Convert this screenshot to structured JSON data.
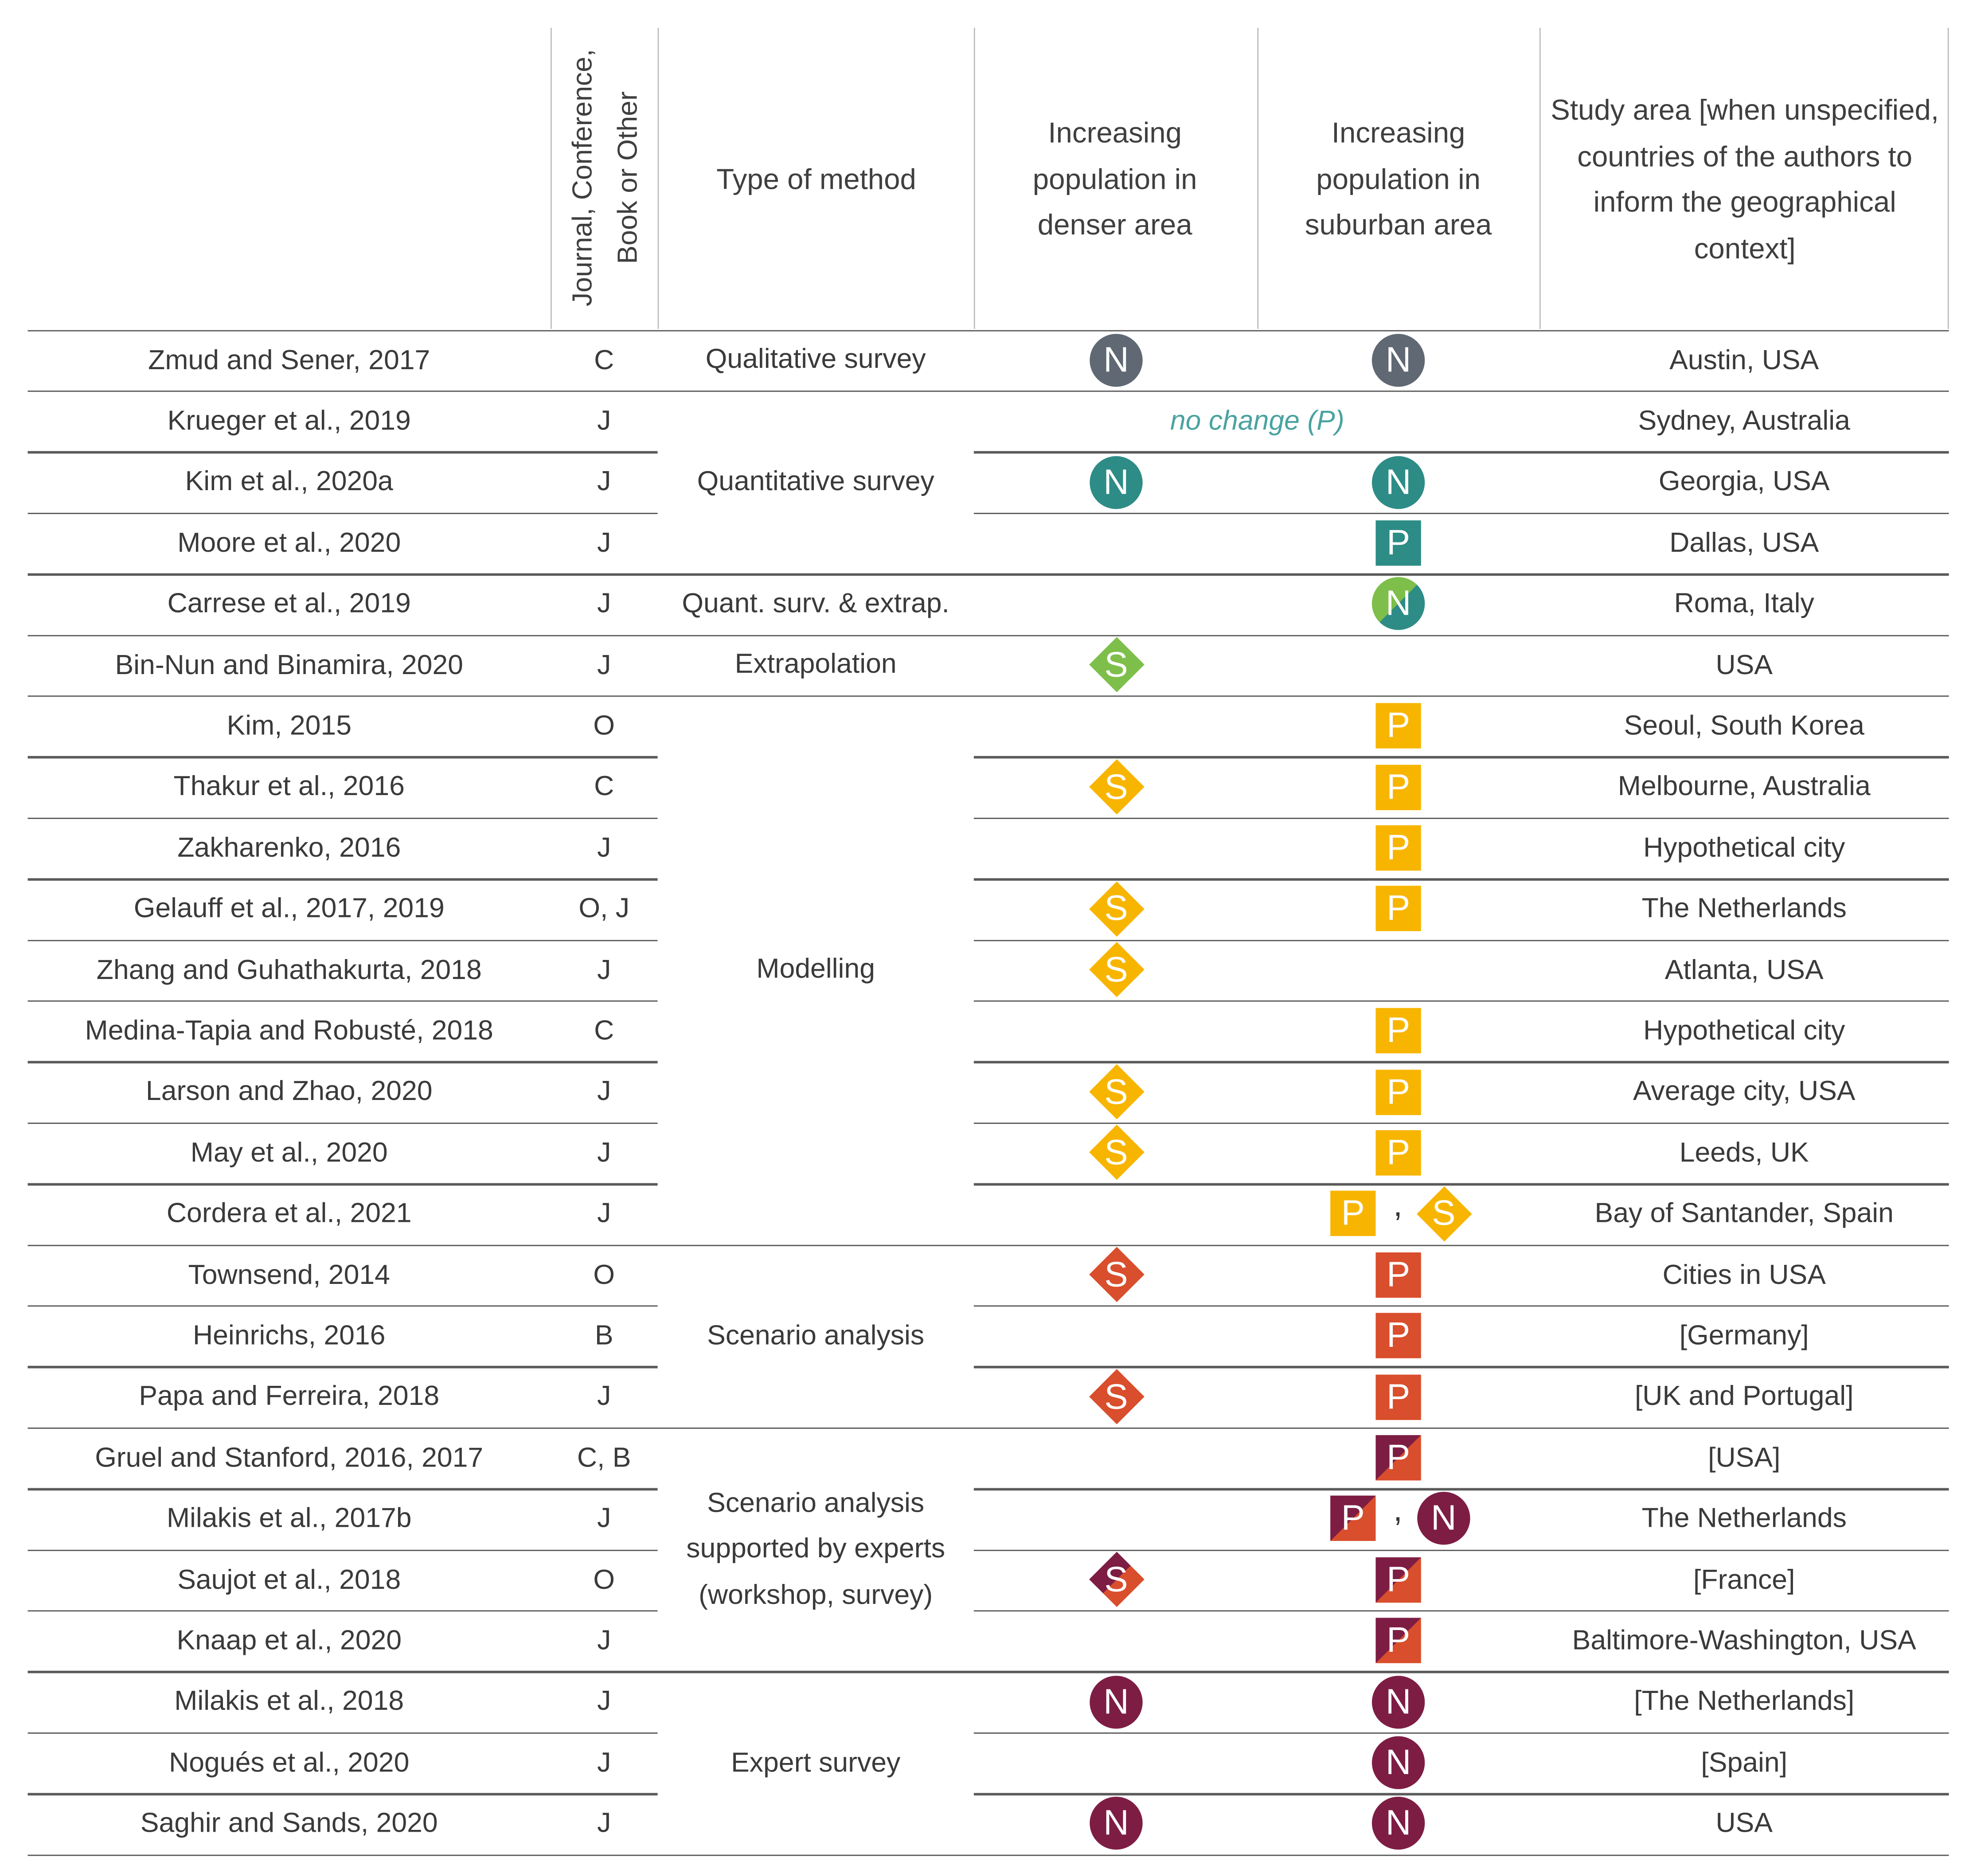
{
  "headers": {
    "type_label": "Journal, Conference, Book or Other",
    "method": "Type of method",
    "denser": "Increasing population in denser area",
    "suburban": "Increasing population in suburban area",
    "study_area": "Study area [when unspecified, countries of the authors to inform the geographical context]"
  },
  "colors": {
    "qualitative": "#5f6873",
    "quantitative": "#2d8c86",
    "green": "#7dbf4a",
    "modelling": "#f7b500",
    "scenario": "#d94e2c",
    "experts": "#7d1d44"
  },
  "methods": [
    {
      "label": "Qualitative survey"
    },
    {
      "label": "Quantitative survey"
    },
    {
      "label": "Quant. surv. & extrap."
    },
    {
      "label": "Extrapolation"
    },
    {
      "label": "Modelling"
    },
    {
      "label": "Scenario analysis"
    },
    {
      "label": "Scenario analysis supported by experts (workshop, survey)"
    },
    {
      "label": "Expert survey"
    }
  ],
  "no_change_label": "no change (P)",
  "rows": [
    {
      "study": "Zmud and Sener, 2017",
      "type": "C",
      "area": "Austin, USA",
      "denser": [
        {
          "letter": "N",
          "shape": "circle",
          "color": "qualitative"
        }
      ],
      "suburban": [
        {
          "letter": "N",
          "shape": "circle",
          "color": "qualitative"
        }
      ]
    },
    {
      "study": "Krueger et al., 2019",
      "type": "J",
      "area": "Sydney, Australia",
      "denser": [],
      "suburban": []
    },
    {
      "study": "Kim et al., 2020a",
      "type": "J",
      "area": "Georgia, USA",
      "denser": [
        {
          "letter": "N",
          "shape": "circle",
          "color": "quantitative"
        }
      ],
      "suburban": [
        {
          "letter": "N",
          "shape": "circle",
          "color": "quantitative"
        }
      ]
    },
    {
      "study": "Moore et al., 2020",
      "type": "J",
      "area": "Dallas, USA",
      "denser": [],
      "suburban": [
        {
          "letter": "P",
          "shape": "square",
          "color": "quantitative"
        }
      ]
    },
    {
      "study": "Carrese et al., 2019",
      "type": "J",
      "area": "Roma, Italy",
      "denser": [],
      "suburban": [
        {
          "letter": "N",
          "shape": "circle-split",
          "color": "green",
          "color2": "quantitative"
        }
      ]
    },
    {
      "study": "Bin-Nun and Binamira, 2020",
      "type": "J",
      "area": "USA",
      "denser": [
        {
          "letter": "S",
          "shape": "diamond",
          "color": "green"
        }
      ],
      "suburban": []
    },
    {
      "study": "Kim, 2015",
      "type": "O",
      "area": "Seoul, South Korea",
      "denser": [],
      "suburban": [
        {
          "letter": "P",
          "shape": "square",
          "color": "modelling"
        }
      ]
    },
    {
      "study": "Thakur et al., 2016",
      "type": "C",
      "area": "Melbourne, Australia",
      "denser": [
        {
          "letter": "S",
          "shape": "diamond",
          "color": "modelling"
        }
      ],
      "suburban": [
        {
          "letter": "P",
          "shape": "square",
          "color": "modelling"
        }
      ]
    },
    {
      "study": "Zakharenko, 2016",
      "type": "J",
      "area": "Hypothetical city",
      "denser": [],
      "suburban": [
        {
          "letter": "P",
          "shape": "square",
          "color": "modelling"
        }
      ]
    },
    {
      "study": "Gelauff et al., 2017, 2019",
      "type": "O, J",
      "area": "The Netherlands",
      "denser": [
        {
          "letter": "S",
          "shape": "diamond",
          "color": "modelling"
        }
      ],
      "suburban": [
        {
          "letter": "P",
          "shape": "square",
          "color": "modelling"
        }
      ]
    },
    {
      "study": "Zhang and Guhathakurta, 2018",
      "type": "J",
      "area": "Atlanta, USA",
      "denser": [
        {
          "letter": "S",
          "shape": "diamond",
          "color": "modelling"
        }
      ],
      "suburban": []
    },
    {
      "study": "Medina-Tapia and Robusté, 2018",
      "type": "C",
      "area": "Hypothetical city",
      "denser": [],
      "suburban": [
        {
          "letter": "P",
          "shape": "square",
          "color": "modelling"
        }
      ]
    },
    {
      "study": "Larson and Zhao, 2020",
      "type": "J",
      "area": "Average city, USA",
      "denser": [
        {
          "letter": "S",
          "shape": "diamond",
          "color": "modelling"
        }
      ],
      "suburban": [
        {
          "letter": "P",
          "shape": "square",
          "color": "modelling"
        }
      ]
    },
    {
      "study": "May et al., 2020",
      "type": "J",
      "area": "Leeds, UK",
      "denser": [
        {
          "letter": "S",
          "shape": "diamond",
          "color": "modelling"
        }
      ],
      "suburban": [
        {
          "letter": "P",
          "shape": "square",
          "color": "modelling"
        }
      ]
    },
    {
      "study": "Cordera et al., 2021",
      "type": "J",
      "area": "Bay of Santander, Spain",
      "denser": [],
      "suburban": [
        {
          "letter": "P",
          "shape": "square",
          "color": "modelling"
        },
        {
          "letter": "S",
          "shape": "diamond",
          "color": "modelling"
        }
      ]
    },
    {
      "study": "Townsend, 2014",
      "type": "O",
      "area": "Cities in USA",
      "denser": [
        {
          "letter": "S",
          "shape": "diamond",
          "color": "scenario"
        }
      ],
      "suburban": [
        {
          "letter": "P",
          "shape": "square",
          "color": "scenario"
        }
      ]
    },
    {
      "study": "Heinrichs, 2016",
      "type": "B",
      "area": "[Germany]",
      "denser": [],
      "suburban": [
        {
          "letter": "P",
          "shape": "square",
          "color": "scenario"
        }
      ]
    },
    {
      "study": "Papa and Ferreira, 2018",
      "type": "J",
      "area": "[UK and Portugal]",
      "denser": [
        {
          "letter": "S",
          "shape": "diamond",
          "color": "scenario"
        }
      ],
      "suburban": [
        {
          "letter": "P",
          "shape": "square",
          "color": "scenario"
        }
      ]
    },
    {
      "study": "Gruel and Stanford, 2016, 2017",
      "type": "C, B",
      "area": "[USA]",
      "denser": [],
      "suburban": [
        {
          "letter": "P",
          "shape": "square-split",
          "color": "experts",
          "color2": "scenario"
        }
      ]
    },
    {
      "study": "Milakis et al., 2017b",
      "type": "J",
      "area": "The Netherlands",
      "denser": [],
      "suburban": [
        {
          "letter": "P",
          "shape": "square-split",
          "color": "experts",
          "color2": "scenario"
        },
        {
          "letter": "N",
          "shape": "circle",
          "color": "experts"
        }
      ]
    },
    {
      "study": "Saujot et al., 2018",
      "type": "O",
      "area": "[France]",
      "denser": [
        {
          "letter": "S",
          "shape": "diamond-split",
          "color": "experts",
          "color2": "scenario"
        }
      ],
      "suburban": [
        {
          "letter": "P",
          "shape": "square-split",
          "color": "experts",
          "color2": "scenario"
        }
      ]
    },
    {
      "study": "Knaap et al., 2020",
      "type": "J",
      "area": "Baltimore-Washington, USA",
      "denser": [],
      "suburban": [
        {
          "letter": "P",
          "shape": "square-split",
          "color": "experts",
          "color2": "scenario"
        }
      ]
    },
    {
      "study": "Milakis et al., 2018",
      "type": "J",
      "area": "[The Netherlands]",
      "denser": [
        {
          "letter": "N",
          "shape": "circle",
          "color": "experts"
        }
      ],
      "suburban": [
        {
          "letter": "N",
          "shape": "circle",
          "color": "experts"
        }
      ]
    },
    {
      "study": "Nogués et al., 2020",
      "type": "J",
      "area": "[Spain]",
      "denser": [],
      "suburban": [
        {
          "letter": "N",
          "shape": "circle",
          "color": "experts"
        }
      ]
    },
    {
      "study": "Saghir and Sands, 2020",
      "type": "J",
      "area": "USA",
      "denser": [
        {
          "letter": "N",
          "shape": "circle",
          "color": "experts"
        }
      ],
      "suburban": [
        {
          "letter": "N",
          "shape": "circle",
          "color": "experts"
        }
      ]
    }
  ]
}
